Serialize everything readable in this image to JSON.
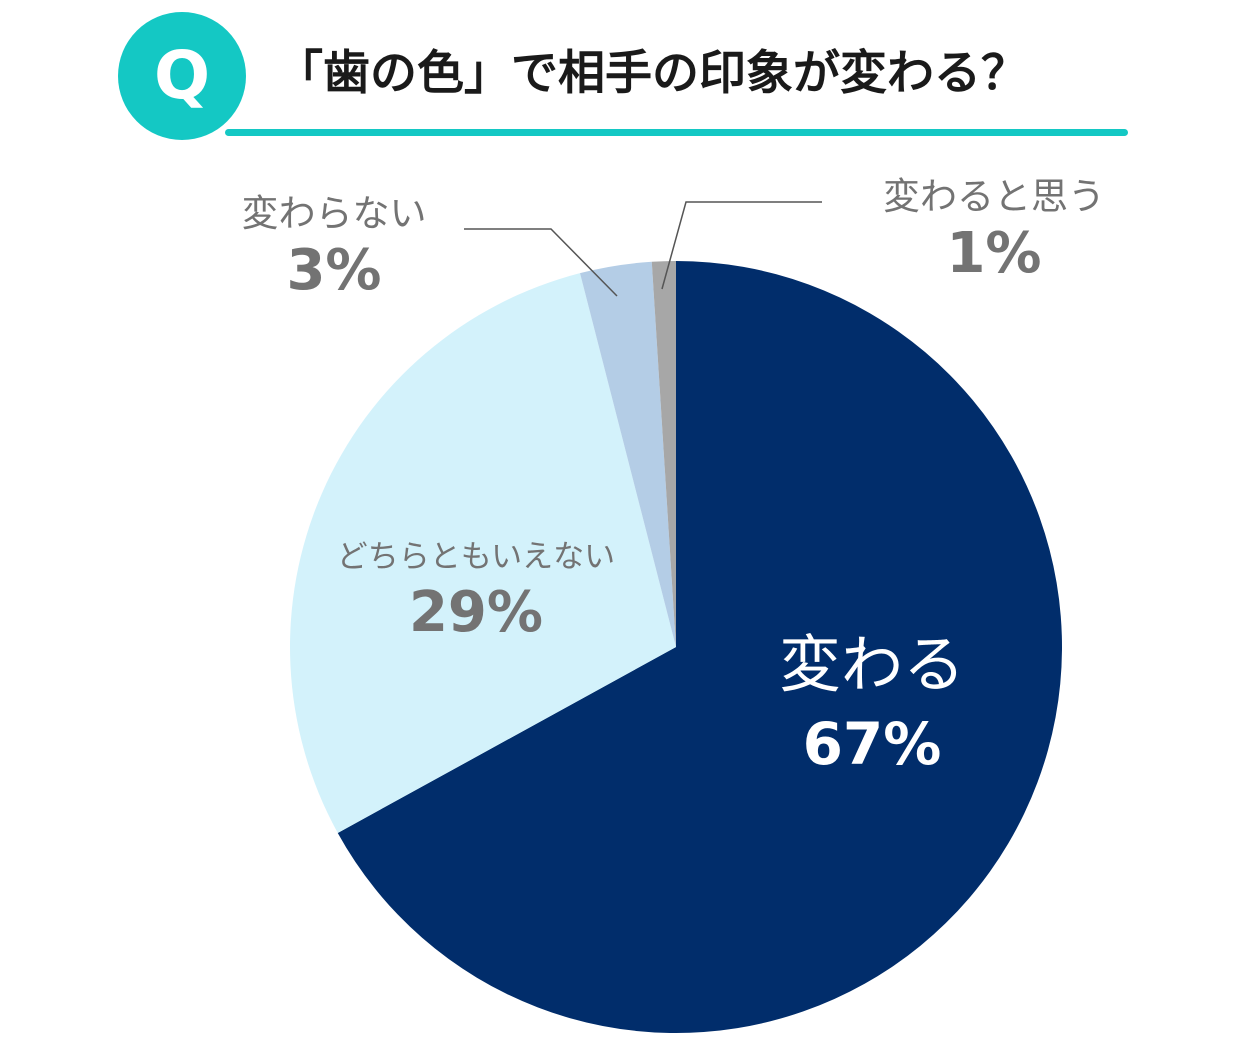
{
  "header": {
    "q_mark": "Q",
    "title": "「歯の色」で相手の印象が変わる？"
  },
  "colors": {
    "accent": "#14c8c4",
    "title_text": "#1a1a1a",
    "label_gray": "#737373",
    "leader_line": "#555555"
  },
  "chart_data": {
    "type": "pie",
    "start": "12 o'clock",
    "direction": "clockwise",
    "slices": [
      {
        "label": "変わる",
        "value": 67,
        "display": "67%",
        "color": "#012d6b",
        "text_color": "#ffffff"
      },
      {
        "label": "どちらともいえない",
        "value": 29,
        "display": "29%",
        "color": "#d3f2fb",
        "text_color": "#737373"
      },
      {
        "label": "変わらない",
        "value": 3,
        "display": "3%",
        "color": "#b4cde6",
        "text_color": "#737373"
      },
      {
        "label": "変わると思う",
        "value": 1,
        "display": "1%",
        "color": "#a7a7a7",
        "text_color": "#737373"
      }
    ]
  }
}
